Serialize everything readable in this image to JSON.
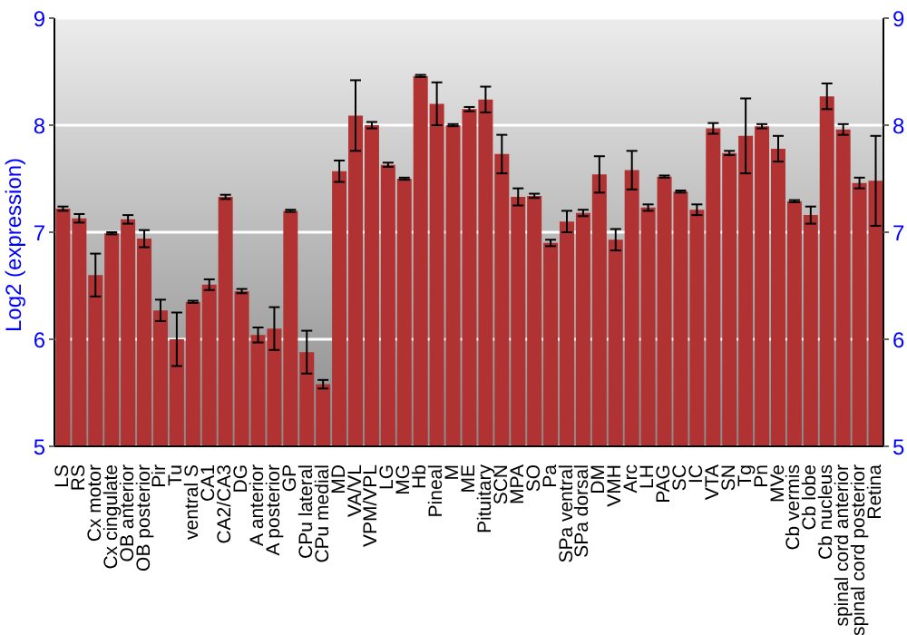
{
  "chart_data": {
    "type": "bar",
    "ylabel": "Log2 (expression)",
    "categories": [
      "LS",
      "RS",
      "Cx motor",
      "Cx cingulate",
      "OB anterior",
      "OB posterior",
      "Pir",
      "Tu",
      "ventral S",
      "CA1",
      "CA2/CA3",
      "DG",
      "A anterior",
      "A posterior",
      "GP",
      "CPu lateral",
      "CPu medial",
      "MD",
      "VA/VL",
      "VPM/VPL",
      "LG",
      "MG",
      "Hb",
      "Pineal",
      "M",
      "ME",
      "Pituitary",
      "SCN",
      "MPA",
      "SO",
      "Pa",
      "SPa ventral",
      "SPa dorsal",
      "DM",
      "VMH",
      "Arc",
      "LH",
      "PAG",
      "SC",
      "IC",
      "VTA",
      "SN",
      "Tg",
      "Pn",
      "MVe",
      "Cb vermis",
      "Cb lobe",
      "Cb nucleus",
      "spinal cord anterior",
      "spinal cord posterior",
      "Retina"
    ],
    "values": [
      7.22,
      7.13,
      6.6,
      6.99,
      7.12,
      6.94,
      6.27,
      6.0,
      6.35,
      6.51,
      7.33,
      6.45,
      6.04,
      6.1,
      7.2,
      5.88,
      5.58,
      7.57,
      8.09,
      8.0,
      7.63,
      7.5,
      8.46,
      8.2,
      8.0,
      8.15,
      8.24,
      7.73,
      7.33,
      7.34,
      6.9,
      7.1,
      7.18,
      7.54,
      6.93,
      7.58,
      7.23,
      7.52,
      7.38,
      7.21,
      7.97,
      7.74,
      7.9,
      7.99,
      7.78,
      7.29,
      7.16,
      8.27,
      7.96,
      7.46,
      7.48
    ],
    "errors": [
      0.02,
      0.04,
      0.2,
      0.01,
      0.04,
      0.08,
      0.1,
      0.25,
      0.01,
      0.05,
      0.02,
      0.02,
      0.07,
      0.2,
      0.01,
      0.2,
      0.04,
      0.1,
      0.33,
      0.03,
      0.02,
      0.01,
      0.01,
      0.2,
      0.01,
      0.02,
      0.12,
      0.18,
      0.08,
      0.02,
      0.03,
      0.1,
      0.03,
      0.17,
      0.1,
      0.18,
      0.03,
      0.01,
      0.01,
      0.05,
      0.05,
      0.02,
      0.35,
      0.02,
      0.12,
      0.01,
      0.08,
      0.12,
      0.05,
      0.05,
      0.42
    ],
    "color": "#b03232",
    "ylim": [
      5,
      9
    ],
    "yticks": [
      5,
      6,
      7,
      8,
      9
    ],
    "y2lim": [
      5,
      9
    ],
    "y2ticks": [
      5,
      6,
      7,
      8,
      9
    ],
    "grid": "y"
  }
}
